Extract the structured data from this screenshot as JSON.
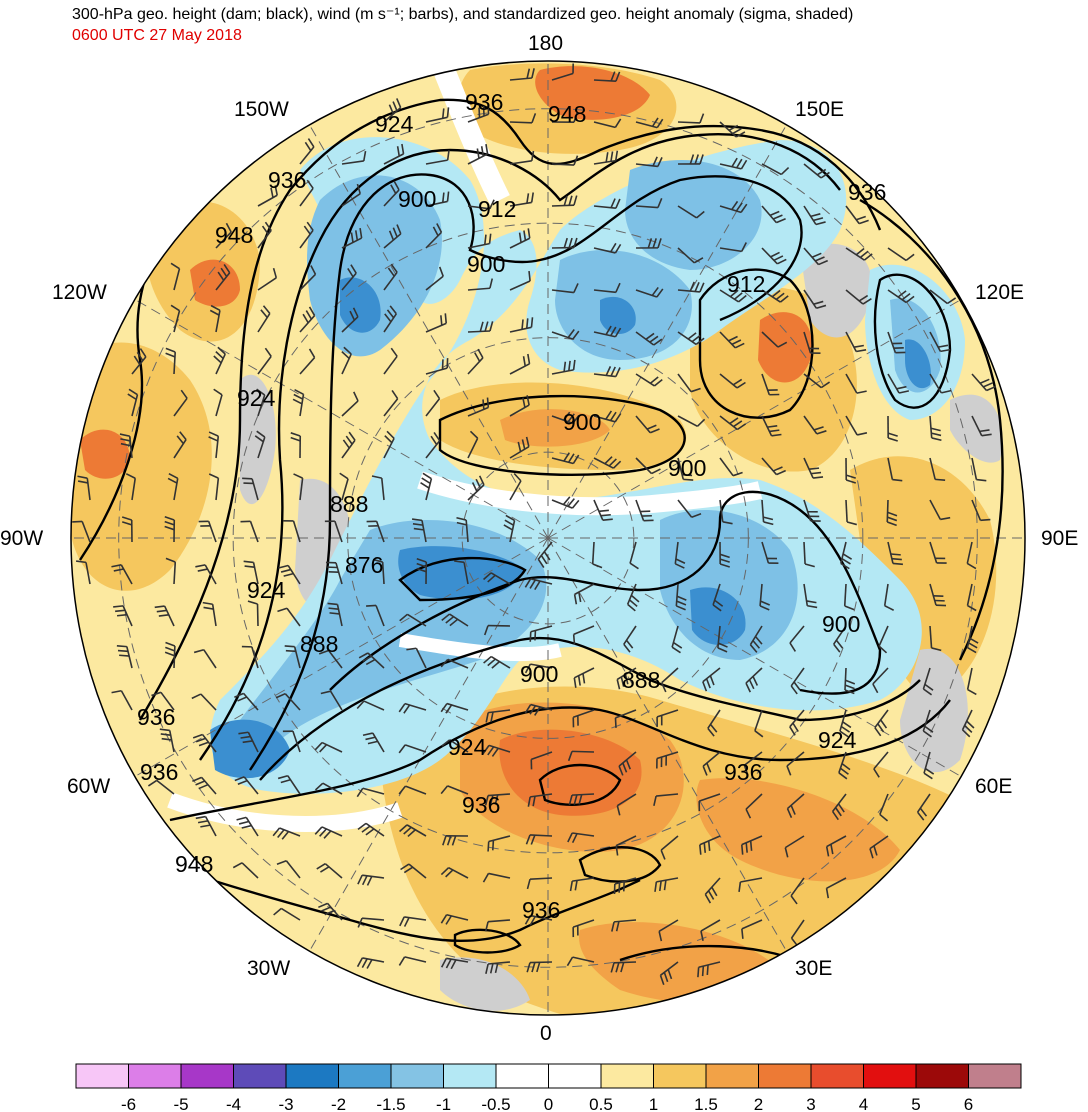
{
  "header": {
    "title": "300-hPa geo. height (dam; black), wind (m s⁻¹; barbs), and standardized geo. height anomaly (sigma, shaded)",
    "valid_time": "0600 UTC 27 May 2018"
  },
  "longitude_labels": {
    "top": "180",
    "bottom": "0",
    "left": "90W",
    "right": "90E",
    "upper_left_1": "150W",
    "upper_left_2": "120W",
    "upper_right_1": "150E",
    "upper_right_2": "120E",
    "lower_left_1": "60W",
    "lower_left_2": "30W",
    "lower_right_1": "60E",
    "lower_right_2": "30E"
  },
  "contour_labels": [
    {
      "text": "936"
    },
    {
      "text": "948"
    },
    {
      "text": "924"
    },
    {
      "text": "900"
    },
    {
      "text": "912"
    },
    {
      "text": "900"
    },
    {
      "text": "936"
    },
    {
      "text": "948"
    },
    {
      "text": "912"
    },
    {
      "text": "900"
    },
    {
      "text": "900"
    },
    {
      "text": "924"
    },
    {
      "text": "888"
    },
    {
      "text": "876"
    },
    {
      "text": "924"
    },
    {
      "text": "888"
    },
    {
      "text": "900"
    },
    {
      "text": "888"
    },
    {
      "text": "900"
    },
    {
      "text": "924"
    },
    {
      "text": "936"
    },
    {
      "text": "936"
    },
    {
      "text": "936"
    },
    {
      "text": "936"
    },
    {
      "text": "924"
    },
    {
      "text": "948"
    },
    {
      "text": "936"
    },
    {
      "text": "936"
    }
  ],
  "colorbar": {
    "colors": [
      "#f7c6f7",
      "#dc7ee8",
      "#a737c8",
      "#5e4bb8",
      "#1c79c2",
      "#4ba0d6",
      "#84c3e4",
      "#b4e8f4",
      "#ffffff",
      "#ffffff",
      "#fce9a0",
      "#f5c75e",
      "#f2a247",
      "#ed7a35",
      "#e84d2d",
      "#e20f0f",
      "#9c0909",
      "#c07f8c"
    ],
    "tick_labels": [
      "-6",
      "-5",
      "-4",
      "-3",
      "-2",
      "-1.5",
      "-1",
      "-0.5",
      "0",
      "0.5",
      "1",
      "1.5",
      "2",
      "3",
      "4",
      "5",
      "6"
    ]
  },
  "colors": {
    "neg_strong": "#3b8fd0",
    "neg_mid": "#7ec1e6",
    "neg_weak": "#b4e8f4",
    "pos_weak": "#fce9a0",
    "pos_mid": "#f5c75e",
    "pos_strong": "#ed7a35",
    "land_mask": "#cfcfcf"
  }
}
